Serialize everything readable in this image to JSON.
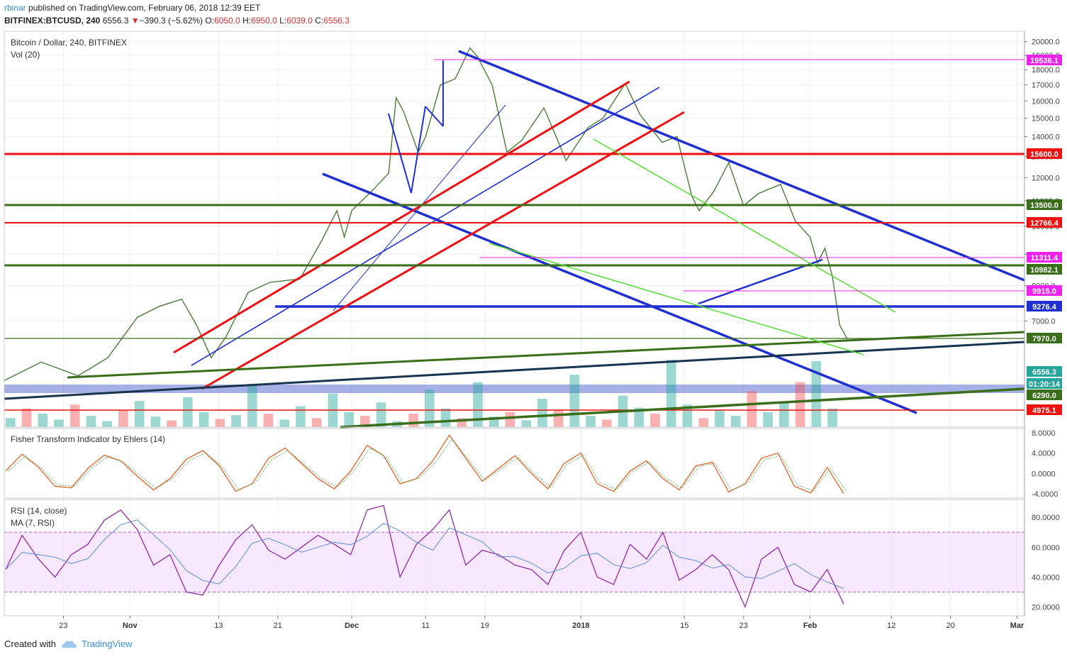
{
  "header": {
    "author": "rbinar",
    "published": "published on TradingView.com, February 06, 2018 12:39 EET",
    "symbol": "BITFINEX:BTCUSD, 240",
    "last": "6556.3",
    "change": "−390.3 (−5.62%)",
    "o_label": "O:",
    "o": "6050.0",
    "h_label": "H:",
    "h": "6950.0",
    "l_label": "L:",
    "l": "6039.0",
    "c_label": "C:",
    "c": "6556.3"
  },
  "panes": {
    "main_title": "Bitcoin / Dollar, 240, BITFINEX",
    "vol_title": "Vol (20)",
    "fisher_title": "Fisher Transform Indicator by Ehlers (14)",
    "rsi_title": "RSI (14, close)",
    "rsi_ma_title": "MA (7, RSI)"
  },
  "footer": {
    "created": "Created with",
    "brand": "TradingView"
  },
  "colors": {
    "up": "#26a69a",
    "down": "#ef5350",
    "blue_line": "#1f2fd0",
    "red_line": "#ee1111",
    "green_line": "#3a6e1a",
    "light_green": "#55dd33",
    "magenta": "#ee22ee",
    "navy": "#17334d"
  },
  "chart_data": [
    {
      "type": "line",
      "name": "price",
      "scale": "log",
      "ylim": [
        4700,
        20800
      ],
      "y_ticks": [
        "20000.0",
        "19000.0",
        "18000.0",
        "17000.0",
        "16000.0",
        "15000.0",
        "14000.0",
        "13000.0",
        "12000.0",
        "11000.0",
        "10000.0",
        "9000.0",
        "8000.0",
        "7000.0"
      ],
      "x_ticks": [
        "23",
        "Nov",
        "13",
        "21",
        "Dec",
        "11",
        "19",
        "2018",
        "15",
        "23",
        "Feb",
        "12",
        "20",
        "Mar"
      ],
      "x_tick_dates": [
        "2017-10-23",
        "2017-11-01",
        "2017-11-13",
        "2017-11-21",
        "2017-12-01",
        "2017-12-11",
        "2017-12-19",
        "2018-01-01",
        "2018-01-15",
        "2018-01-23",
        "2018-02-01",
        "2018-02-12",
        "2018-02-20",
        "2018-03-01"
      ],
      "points": [
        [
          "2017-10-15",
          5600
        ],
        [
          "2017-10-20",
          6000
        ],
        [
          "2017-10-25",
          5700
        ],
        [
          "2017-10-29",
          6100
        ],
        [
          "2017-11-02",
          7100
        ],
        [
          "2017-11-05",
          7400
        ],
        [
          "2017-11-08",
          7600
        ],
        [
          "2017-11-10",
          6900
        ],
        [
          "2017-11-12",
          6100
        ],
        [
          "2017-11-14",
          6600
        ],
        [
          "2017-11-17",
          7800
        ],
        [
          "2017-11-20",
          8100
        ],
        [
          "2017-11-24",
          8200
        ],
        [
          "2017-11-27",
          9500
        ],
        [
          "2017-11-29",
          10600
        ],
        [
          "2017-11-30",
          9600
        ],
        [
          "2017-12-01",
          10600
        ],
        [
          "2017-12-04",
          11500
        ],
        [
          "2017-12-06",
          12200
        ],
        [
          "2017-12-07",
          16200
        ],
        [
          "2017-12-08",
          15400
        ],
        [
          "2017-12-10",
          13200
        ],
        [
          "2017-12-11",
          14000
        ],
        [
          "2017-12-13",
          17000
        ],
        [
          "2017-12-15",
          17400
        ],
        [
          "2017-12-17",
          19536
        ],
        [
          "2017-12-18",
          18900
        ],
        [
          "2017-12-20",
          17000
        ],
        [
          "2017-12-22",
          13200
        ],
        [
          "2017-12-24",
          13800
        ],
        [
          "2017-12-27",
          15600
        ],
        [
          "2017-12-30",
          12800
        ],
        [
          "2018-01-02",
          14500
        ],
        [
          "2018-01-04",
          15000
        ],
        [
          "2018-01-07",
          17100
        ],
        [
          "2018-01-09",
          15200
        ],
        [
          "2018-01-12",
          13700
        ],
        [
          "2018-01-14",
          14000
        ],
        [
          "2018-01-16",
          11200
        ],
        [
          "2018-01-17",
          10600
        ],
        [
          "2018-01-19",
          11400
        ],
        [
          "2018-01-21",
          12700
        ],
        [
          "2018-01-23",
          10800
        ],
        [
          "2018-01-25",
          11300
        ],
        [
          "2018-01-28",
          11700
        ],
        [
          "2018-01-30",
          10200
        ],
        [
          "2018-02-01",
          9600
        ],
        [
          "2018-02-02",
          8700
        ],
        [
          "2018-02-03",
          9200
        ],
        [
          "2018-02-04",
          8300
        ],
        [
          "2018-02-05",
          6900
        ],
        [
          "2018-02-06",
          6556.3
        ]
      ]
    },
    {
      "type": "bar",
      "name": "volume",
      "note_ma": "Vol (20)",
      "values": [
        12,
        25,
        18,
        10,
        30,
        15,
        8,
        22,
        35,
        14,
        9,
        40,
        20,
        11,
        16,
        55,
        18,
        10,
        28,
        12,
        45,
        20,
        15,
        33,
        8,
        18,
        50,
        25,
        12,
        60,
        14,
        20,
        9,
        38,
        22,
        70,
        15,
        10,
        42,
        26,
        18,
        90,
        30,
        12,
        22,
        15,
        48,
        20,
        34,
        60,
        88,
        25
      ]
    },
    {
      "type": "line",
      "name": "fisher",
      "ylim": [
        -4.8,
        8.8
      ],
      "y_ticks": [
        "8.0000",
        "4.0000",
        "0.0000",
        "-4.0000"
      ],
      "values": [
        0.5,
        3.8,
        1.2,
        -2.5,
        -2.8,
        1,
        3.6,
        2.5,
        -0.5,
        -3.2,
        -1,
        2.8,
        4.5,
        1.5,
        -3.5,
        -2,
        3,
        5,
        2,
        -1,
        -3,
        0.5,
        5.5,
        3.5,
        -2,
        -1,
        2.5,
        7.5,
        3,
        -1.5,
        1,
        3.5,
        0,
        -3,
        2,
        4,
        -2,
        -3.5,
        0.5,
        2.5,
        -1,
        -3.2,
        1.5,
        2.2,
        -3.6,
        -2,
        3,
        4,
        -2.5,
        -3.8,
        1.2,
        -3.9
      ]
    },
    {
      "type": "line",
      "name": "rsi",
      "ylim": [
        14,
        92
      ],
      "y_ticks": [
        "80.0000",
        "60.0000",
        "40.0000",
        "20.0000"
      ],
      "band": [
        30,
        70
      ],
      "values": [
        45,
        68,
        52,
        40,
        55,
        62,
        78,
        85,
        72,
        48,
        55,
        30,
        28,
        48,
        65,
        75,
        58,
        52,
        60,
        68,
        62,
        55,
        85,
        88,
        40,
        62,
        72,
        85,
        48,
        58,
        55,
        48,
        45,
        35,
        58,
        70,
        40,
        35,
        62,
        52,
        70,
        38,
        45,
        55,
        45,
        20,
        52,
        60,
        35,
        30,
        45,
        22
      ]
    }
  ],
  "levels": {
    "l1": "19536.1",
    "l2": "15600.0",
    "l3": "13500.0",
    "l4": "12766.4",
    "l5": "11311.4",
    "l6": "10982.1",
    "l7": "9915.0",
    "l8": "9276.4",
    "l9": "7970.0",
    "l10": "6556.3",
    "l11": "01:20:14",
    "l12": "6290.0",
    "l13": "4975.1"
  }
}
